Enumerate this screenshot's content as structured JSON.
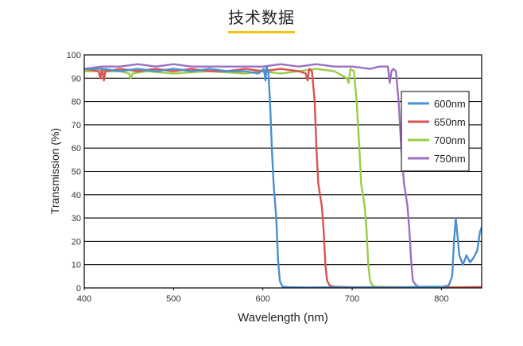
{
  "page": {
    "section_title": "技术数据"
  },
  "chart_data": {
    "type": "line",
    "title": "",
    "xlabel": "Wavelength (nm)",
    "ylabel": "Transmission (%)",
    "xlim": [
      400,
      845
    ],
    "ylim": [
      0,
      100
    ],
    "x_ticks": [
      400,
      500,
      600,
      700,
      800
    ],
    "y_ticks": [
      0,
      10,
      20,
      30,
      40,
      50,
      60,
      70,
      80,
      90,
      100
    ],
    "grid": "horizontal",
    "legend_position": "right-upper",
    "series": [
      {
        "name": "600nm",
        "color": "#4a8fd0",
        "x": [
          400,
          420,
          440,
          460,
          480,
          500,
          520,
          540,
          560,
          580,
          595,
          601,
          603,
          604,
          606,
          608,
          610,
          612,
          613,
          615,
          617,
          619,
          622,
          630,
          650,
          680,
          700,
          720,
          740,
          760,
          780,
          800,
          808,
          812,
          814,
          816,
          818,
          820,
          824,
          828,
          832,
          836,
          840,
          843,
          845
        ],
        "y": [
          94,
          94,
          93,
          94,
          93,
          94,
          93,
          94,
          93,
          93,
          92,
          94,
          89,
          95,
          93,
          80,
          60,
          45,
          40,
          30,
          12,
          3,
          0.5,
          0.3,
          0.2,
          0.3,
          0.2,
          0.3,
          0.2,
          0.3,
          0.5,
          0.5,
          1,
          5,
          20,
          30,
          22,
          14,
          10,
          14,
          11,
          13,
          16,
          24,
          26
        ]
      },
      {
        "name": "650nm",
        "color": "#d9534f",
        "x": [
          400,
          416,
          418,
          420,
          422,
          424,
          426,
          440,
          460,
          480,
          500,
          520,
          540,
          560,
          580,
          600,
          620,
          640,
          648,
          650,
          652,
          655,
          658,
          660,
          662,
          664,
          666,
          668,
          670,
          672,
          675,
          680,
          700,
          740,
          780,
          820,
          845
        ],
        "y": [
          94,
          93,
          90,
          94,
          89,
          94,
          93,
          94,
          93,
          94,
          93,
          94,
          93,
          93,
          94,
          93,
          94,
          93,
          92,
          89,
          94,
          93,
          80,
          60,
          45,
          40,
          35,
          25,
          10,
          3,
          1,
          0.5,
          0.3,
          0.3,
          0.2,
          0.2,
          0.3
        ]
      },
      {
        "name": "700nm",
        "color": "#9acd46",
        "x": [
          400,
          440,
          450,
          452,
          454,
          470,
          500,
          540,
          580,
          600,
          620,
          640,
          660,
          680,
          694,
          696,
          698,
          702,
          705,
          708,
          710,
          712,
          714,
          716,
          718,
          720,
          723,
          726,
          740,
          780,
          820,
          845
        ],
        "y": [
          93,
          93,
          92,
          90,
          92,
          93,
          92,
          93,
          92,
          93,
          92,
          93,
          94,
          93,
          90,
          88,
          94,
          93,
          80,
          60,
          45,
          40,
          35,
          25,
          10,
          3,
          1,
          0.5,
          0.4,
          0.3,
          0.3,
          0.4
        ]
      },
      {
        "name": "750nm",
        "color": "#9b70c0",
        "x": [
          400,
          420,
          440,
          460,
          480,
          500,
          520,
          540,
          560,
          580,
          600,
          620,
          640,
          660,
          680,
          700,
          720,
          730,
          740,
          742,
          744,
          746,
          749,
          752,
          755,
          758,
          760,
          762,
          764,
          766,
          768,
          770,
          772,
          775,
          780,
          800,
          820,
          845
        ],
        "y": [
          94,
          95,
          95,
          96,
          95,
          96,
          95,
          95,
          95,
          95,
          95,
          96,
          95,
          96,
          95,
          95,
          94,
          95,
          95,
          88,
          93,
          94,
          93,
          80,
          60,
          45,
          40,
          35,
          25,
          12,
          3,
          2,
          1,
          0.5,
          0.4,
          0.3,
          0.3,
          0.4
        ]
      }
    ]
  }
}
